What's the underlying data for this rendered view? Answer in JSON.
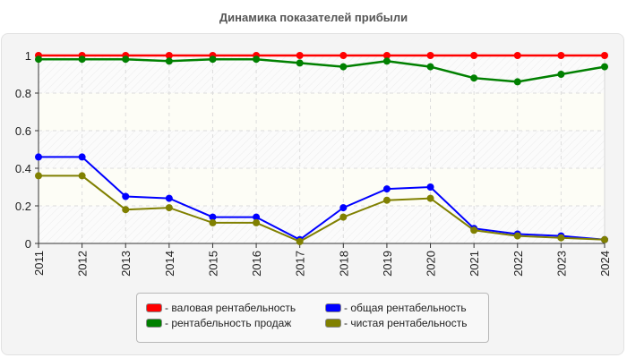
{
  "chart_data": {
    "type": "line",
    "title": "Динамика показателей прибыли",
    "xlabel": "",
    "ylabel": "",
    "x": [
      "2011",
      "2012",
      "2013",
      "2014",
      "2015",
      "2016",
      "2017",
      "2018",
      "2019",
      "2020",
      "2021",
      "2022",
      "2023",
      "2024"
    ],
    "ylim": [
      0,
      1
    ],
    "yticks": [
      "0",
      "0.2",
      "0.4",
      "0.6",
      "0.8",
      "1"
    ],
    "grid": true,
    "legend_position": "bottom",
    "series": [
      {
        "name": "- валовая рентабельность",
        "color": "#ff0000",
        "values": [
          1,
          1,
          1,
          1,
          1,
          1,
          1,
          1,
          1,
          1,
          1,
          1,
          1,
          1
        ]
      },
      {
        "name": "- рентабельность продаж",
        "color": "#008000",
        "values": [
          0.98,
          0.98,
          0.98,
          0.97,
          0.98,
          0.98,
          0.96,
          0.94,
          0.97,
          0.94,
          0.88,
          0.86,
          0.9,
          0.94
        ]
      },
      {
        "name": "- общая рентабельность",
        "color": "#0000ff",
        "values": [
          0.46,
          0.46,
          0.25,
          0.24,
          0.14,
          0.14,
          0.02,
          0.19,
          0.29,
          0.3,
          0.08,
          0.05,
          0.04,
          0.02
        ]
      },
      {
        "name": "- чистая рентабельность",
        "color": "#808000",
        "values": [
          0.36,
          0.36,
          0.18,
          0.19,
          0.11,
          0.11,
          0.01,
          0.14,
          0.23,
          0.24,
          0.07,
          0.04,
          0.03,
          0.02
        ]
      }
    ]
  },
  "legend": {
    "items": [
      {
        "label": "- валовая рентабельность",
        "color": "#ff0000"
      },
      {
        "label": "- общая рентабельность",
        "color": "#0000ff"
      },
      {
        "label": "- рентабельность продаж",
        "color": "#008000"
      },
      {
        "label": "- чистая рентабельность",
        "color": "#808000"
      }
    ]
  }
}
